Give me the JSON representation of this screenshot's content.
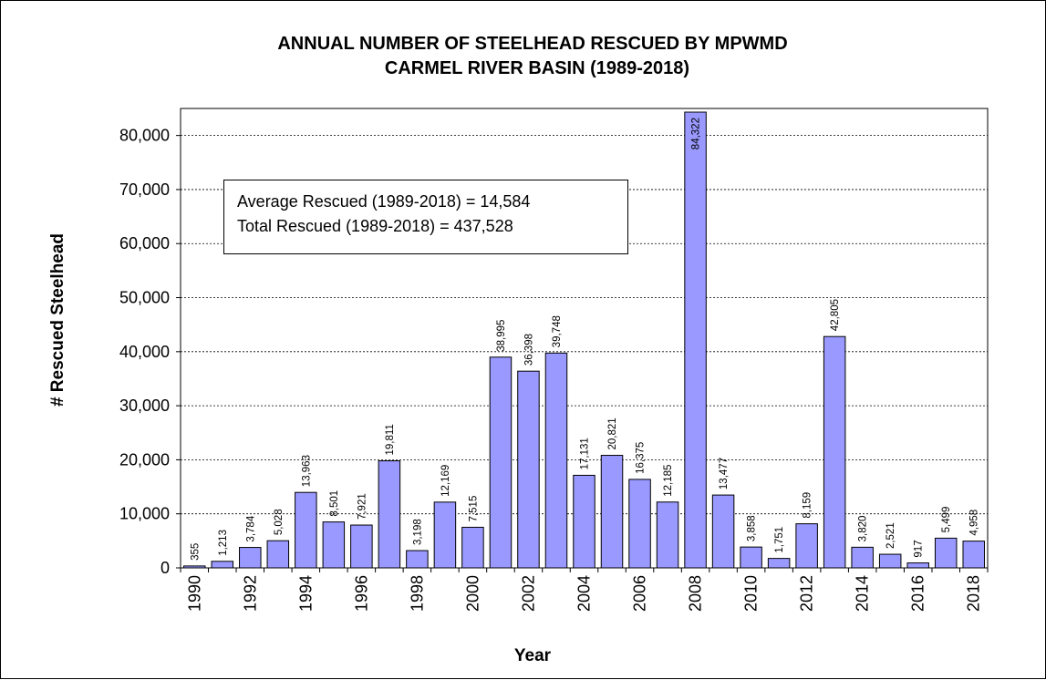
{
  "chart_data": {
    "type": "bar",
    "title": [
      "ANNUAL NUMBER OF STEELHEAD RESCUED BY MPWMD",
      "CARMEL RIVER BASIN  (1989-2018)"
    ],
    "xlabel": "Year",
    "ylabel": "# Rescued Steelhead",
    "ylim": [
      0,
      85000
    ],
    "y_ticks": [
      0,
      10000,
      20000,
      30000,
      40000,
      50000,
      60000,
      70000,
      80000
    ],
    "y_tick_labels": [
      "0",
      "10,000",
      "20,000",
      "30,000",
      "40,000",
      "50,000",
      "60,000",
      "70,000",
      "80,000"
    ],
    "grid": "horizontal-dashed",
    "bar_color": "#9999ff",
    "categories": [
      "1990",
      "1991",
      "1992",
      "1993",
      "1994",
      "1995",
      "1996",
      "1997",
      "1998",
      "1999",
      "2000",
      "2001",
      "2002",
      "2003",
      "2004",
      "2005",
      "2006",
      "2007",
      "2008",
      "2009",
      "2010",
      "2011",
      "2012",
      "2013",
      "2014",
      "2015",
      "2016",
      "2017",
      "2018"
    ],
    "x_tick_labels": [
      "1990",
      "",
      "1992",
      "",
      "1994",
      "",
      "1996",
      "",
      "1998",
      "",
      "2000",
      "",
      "2002",
      "",
      "2004",
      "",
      "2006",
      "",
      "2008",
      "",
      "2010",
      "",
      "2012",
      "",
      "2014",
      "",
      "2016",
      "",
      "2018"
    ],
    "values": [
      355,
      1213,
      3784,
      5028,
      13963,
      8501,
      7921,
      19811,
      3198,
      12169,
      7515,
      38995,
      36398,
      39748,
      17131,
      20821,
      16375,
      12185,
      84322,
      13477,
      3858,
      1751,
      8159,
      42805,
      3820,
      2521,
      917,
      5499,
      4958
    ],
    "data_labels": [
      "355",
      "1,213",
      "3,784",
      "5,028",
      "13,963",
      "8,501",
      "7,921",
      "19,811",
      "3,198",
      "12,169",
      "7,515",
      "38,995",
      "36,398",
      "39,748",
      "17,131",
      "20,821",
      "16,375",
      "12,185",
      "84,322",
      "13,477",
      "3,858",
      "1,751",
      "8,159",
      "42,805",
      "3,820",
      "2,521",
      "917",
      "5,499",
      "4,958"
    ],
    "annotations": [
      "Average Rescued  (1989-2018) = 14,584",
      "Total Rescued  (1989-2018) = 437,528"
    ]
  }
}
